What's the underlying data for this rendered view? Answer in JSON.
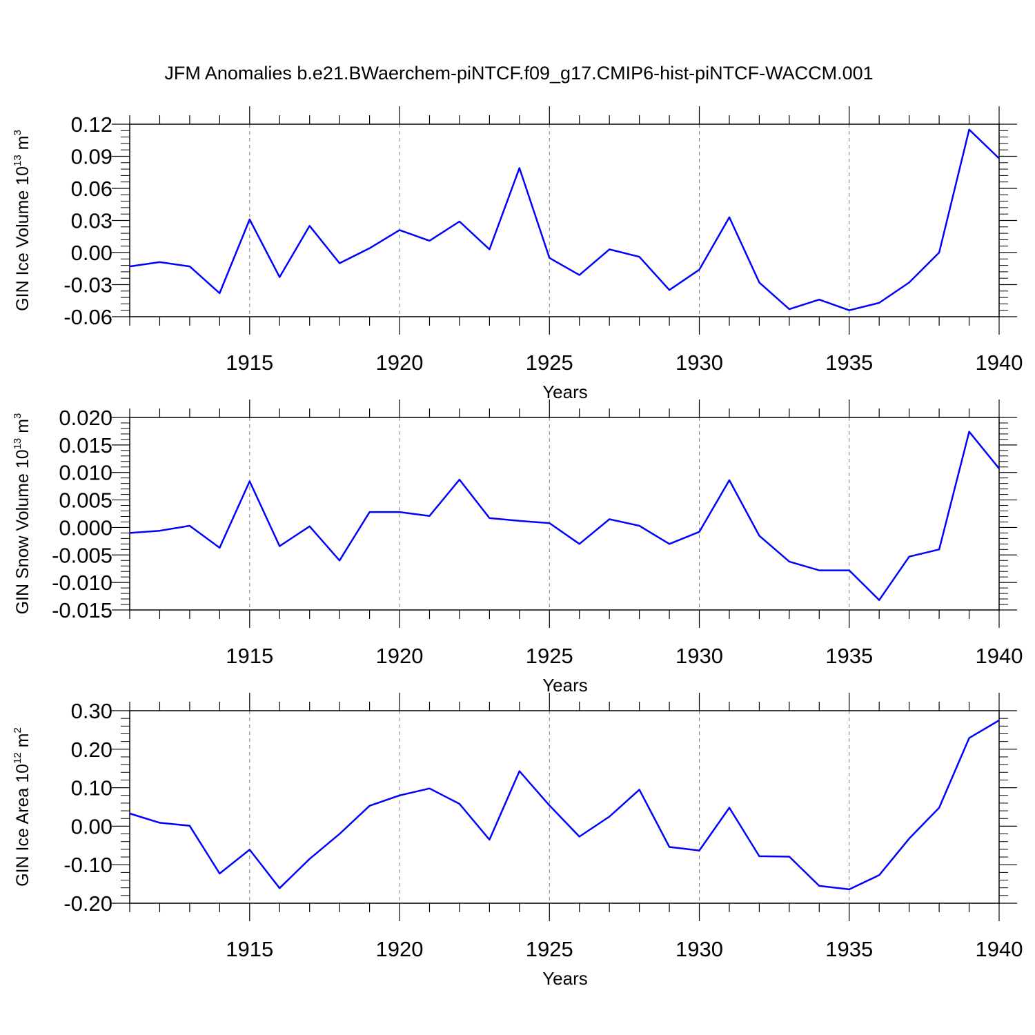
{
  "title": "JFM Anomalies b.e21.BWaerchem-piNTCF.f09_g17.CMIP6-hist-piNTCF-WACCM.001",
  "colors": {
    "line": "#0000ff",
    "axis": "#000000",
    "grid": "#808080"
  },
  "chart_data": [
    {
      "type": "line",
      "ylabel": {
        "text": "GIN Ice Volume 10",
        "exp": "13",
        "unit": " m",
        "unit_exp": "3"
      },
      "xlabel": "Years",
      "xlim": [
        1911,
        1940
      ],
      "ylim": [
        -0.06,
        0.12
      ],
      "ytick_values": [
        -0.06,
        -0.03,
        0.0,
        0.03,
        0.06,
        0.09,
        0.12
      ],
      "ytick_labels": [
        "-0.06",
        "-0.03",
        "0.00",
        "0.03",
        "0.06",
        "0.09",
        "0.12"
      ],
      "xtick_values": [
        1915,
        1920,
        1925,
        1930,
        1935,
        1940
      ],
      "xtick_labels": [
        "1915",
        "1920",
        "1925",
        "1930",
        "1935",
        "1940"
      ],
      "x": [
        1911,
        1912,
        1913,
        1914,
        1915,
        1916,
        1917,
        1918,
        1919,
        1920,
        1921,
        1922,
        1923,
        1924,
        1925,
        1926,
        1927,
        1928,
        1929,
        1930,
        1931,
        1932,
        1933,
        1934,
        1935,
        1936,
        1937,
        1938,
        1939,
        1940
      ],
      "series": [
        {
          "name": "GIN Ice Volume",
          "values": [
            -0.013,
            -0.009,
            -0.013,
            -0.038,
            0.031,
            -0.023,
            0.025,
            -0.01,
            0.004,
            0.021,
            0.011,
            0.029,
            0.003,
            0.079,
            -0.005,
            -0.021,
            0.003,
            -0.004,
            -0.035,
            -0.016,
            0.033,
            -0.028,
            -0.053,
            -0.044,
            -0.054,
            -0.047,
            -0.028,
            0.0,
            0.115,
            0.088
          ]
        }
      ]
    },
    {
      "type": "line",
      "ylabel": {
        "text": "GIN Snow Volume 10",
        "exp": "13",
        "unit": " m",
        "unit_exp": "3"
      },
      "xlabel": "Years",
      "xlim": [
        1911,
        1940
      ],
      "ylim": [
        -0.015,
        0.02
      ],
      "ytick_values": [
        -0.015,
        -0.01,
        -0.005,
        0.0,
        0.005,
        0.01,
        0.015,
        0.02
      ],
      "ytick_labels": [
        "-0.015",
        "-0.010",
        "-0.005",
        "0.000",
        "0.005",
        "0.010",
        "0.015",
        "0.020"
      ],
      "xtick_values": [
        1915,
        1920,
        1925,
        1930,
        1935,
        1940
      ],
      "xtick_labels": [
        "1915",
        "1920",
        "1925",
        "1930",
        "1935",
        "1940"
      ],
      "x": [
        1911,
        1912,
        1913,
        1914,
        1915,
        1916,
        1917,
        1918,
        1919,
        1920,
        1921,
        1922,
        1923,
        1924,
        1925,
        1926,
        1927,
        1928,
        1929,
        1930,
        1931,
        1932,
        1933,
        1934,
        1935,
        1936,
        1937,
        1938,
        1939,
        1940
      ],
      "series": [
        {
          "name": "GIN Snow Volume",
          "values": [
            -0.001,
            -0.0006,
            0.0003,
            -0.0037,
            0.0084,
            -0.0034,
            0.0002,
            -0.006,
            0.0028,
            0.0028,
            0.0021,
            0.0087,
            0.0017,
            0.0012,
            0.0008,
            -0.003,
            0.0015,
            0.0003,
            -0.003,
            -0.0008,
            0.0086,
            -0.0015,
            -0.0062,
            -0.0078,
            -0.0078,
            -0.0132,
            -0.0053,
            -0.004,
            0.0174,
            0.0107
          ]
        }
      ]
    },
    {
      "type": "line",
      "ylabel": {
        "text": "GIN Ice Area 10",
        "exp": "12",
        "unit": " m",
        "unit_exp": "2"
      },
      "xlabel": "Years",
      "xlim": [
        1911,
        1940
      ],
      "ylim": [
        -0.2,
        0.3
      ],
      "ytick_values": [
        -0.2,
        -0.1,
        0.0,
        0.1,
        0.2,
        0.3
      ],
      "ytick_labels": [
        "-0.20",
        "-0.10",
        "0.00",
        "0.10",
        "0.20",
        "0.30"
      ],
      "xtick_values": [
        1915,
        1920,
        1925,
        1930,
        1935,
        1940
      ],
      "xtick_labels": [
        "1915",
        "1920",
        "1925",
        "1930",
        "1935",
        "1940"
      ],
      "x": [
        1911,
        1912,
        1913,
        1914,
        1915,
        1916,
        1917,
        1918,
        1919,
        1920,
        1921,
        1922,
        1923,
        1924,
        1925,
        1926,
        1927,
        1928,
        1929,
        1930,
        1931,
        1932,
        1933,
        1934,
        1935,
        1936,
        1937,
        1938,
        1939,
        1940
      ],
      "series": [
        {
          "name": "GIN Ice Area",
          "values": [
            0.033,
            0.009,
            0.001,
            -0.123,
            -0.061,
            -0.161,
            -0.085,
            -0.02,
            0.053,
            0.08,
            0.098,
            0.058,
            -0.035,
            0.143,
            0.054,
            -0.027,
            0.025,
            0.095,
            -0.054,
            -0.063,
            0.048,
            -0.078,
            -0.079,
            -0.155,
            -0.164,
            -0.127,
            -0.032,
            0.048,
            0.229,
            0.275
          ]
        }
      ]
    }
  ]
}
